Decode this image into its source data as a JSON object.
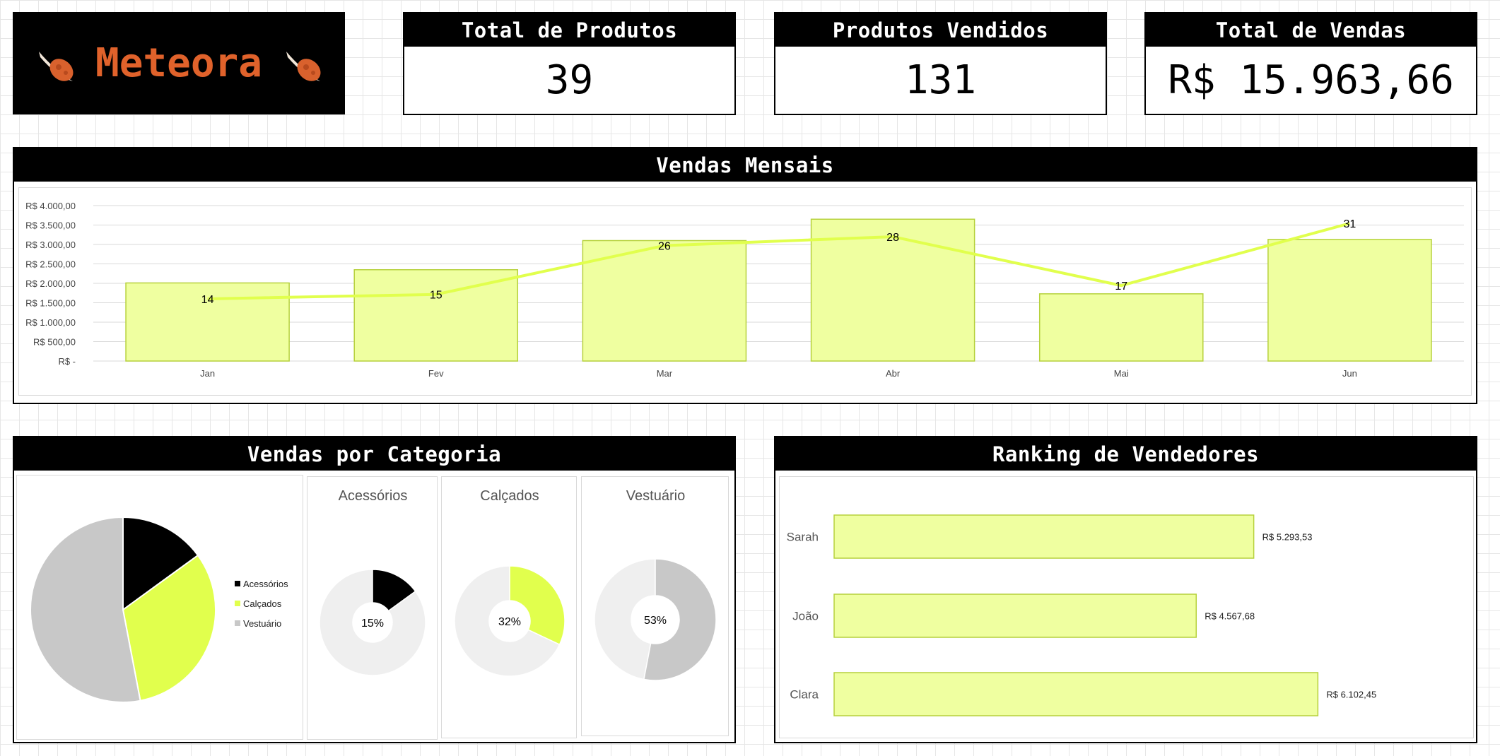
{
  "brand": {
    "name": "Meteora",
    "logo_icon": "meteor-icon",
    "color": "#e0622b"
  },
  "kpis": [
    {
      "title": "Total de Produtos",
      "value": "39"
    },
    {
      "title": "Produtos Vendidos",
      "value": "131"
    },
    {
      "title": "Total de Vendas",
      "value": "R$ 15.963,66"
    }
  ],
  "sections": {
    "monthly": "Vendas Mensais",
    "category": "Vendas por Categoria",
    "ranking": "Ranking de Vendedores"
  },
  "colors": {
    "accent": "#e1ff4d",
    "bar_fill": "#efffa0",
    "bar_border": "#b6d13c",
    "dark": "#000000",
    "gray": "#c8c8c8",
    "light_gray": "#efefef"
  },
  "chart_data": [
    {
      "type": "bar",
      "title": "Vendas Mensais",
      "categories": [
        "Jan",
        "Fev",
        "Mar",
        "Abr",
        "Mai",
        "Jun"
      ],
      "series": [
        {
          "type": "bar",
          "values": [
            2010,
            2350,
            3100,
            3650,
            1730,
            3130
          ]
        },
        {
          "type": "line",
          "values": [
            14,
            15,
            26,
            28,
            17,
            31
          ],
          "labels": [
            "14",
            "15",
            "26",
            "28",
            "17",
            "31"
          ]
        }
      ],
      "ylim": [
        0,
        4000
      ],
      "y2lim": [
        0,
        35
      ],
      "yticks": [
        "R$ -",
        "R$ 500,00",
        "R$ 1.000,00",
        "R$ 1.500,00",
        "R$ 2.000,00",
        "R$ 2.500,00",
        "R$ 3.000,00",
        "R$ 3.500,00",
        "R$ 4.000,00"
      ],
      "grid": true
    },
    {
      "type": "pie",
      "categories": [
        "Acessórios",
        "Calçados",
        "Vestuário"
      ],
      "values": [
        15,
        32,
        53
      ],
      "legend": "right"
    },
    {
      "type": "pie",
      "donuts": [
        {
          "title": "Acessórios",
          "value": 15,
          "label": "15%",
          "color": "#000000"
        },
        {
          "title": "Calçados",
          "value": 32,
          "label": "32%",
          "color": "#e1ff4d"
        },
        {
          "title": "Vestuário",
          "value": 53,
          "label": "53%",
          "color": "#c8c8c8"
        }
      ]
    },
    {
      "type": "bar",
      "orientation": "horizontal",
      "title": "Ranking de Vendedores",
      "categories": [
        "Sarah",
        "João",
        "Clara"
      ],
      "values": [
        5293.53,
        4567.68,
        6102.45
      ],
      "labels": [
        "R$ 5.293,53",
        "R$ 4.567,68",
        "R$ 6.102,45"
      ]
    }
  ]
}
